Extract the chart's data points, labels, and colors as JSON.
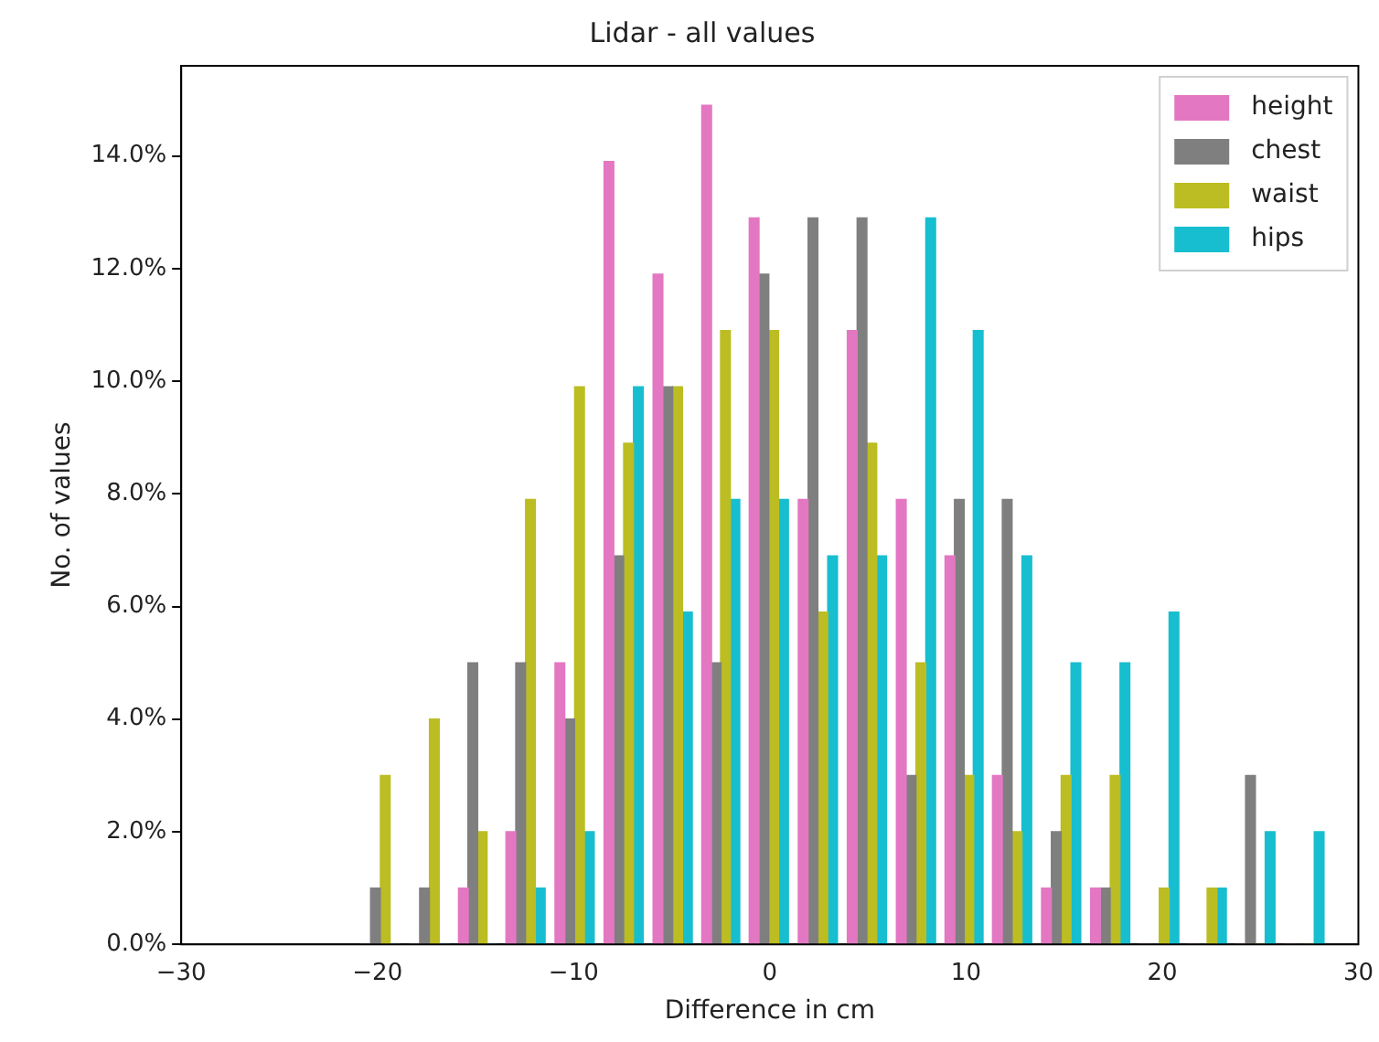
{
  "chart_data": {
    "type": "histogram",
    "title": "Lidar - all values",
    "xlabel": "Difference in cm",
    "ylabel": "No. of values",
    "bins": [
      -21.1,
      -18.6,
      -16.1,
      -13.7,
      -11.2,
      -8.7,
      -6.2,
      -3.7,
      -1.3,
      1.2,
      3.7,
      6.2,
      8.7,
      11.1,
      13.6,
      16.1,
      18.6,
      21.1,
      23.5,
      26.0,
      28.5
    ],
    "series": [
      {
        "name": "height",
        "color": "#e377c2",
        "values": [
          0,
          0,
          1.0,
          2.0,
          5.0,
          13.9,
          11.9,
          14.9,
          12.9,
          7.9,
          10.9,
          7.9,
          6.9,
          3.0,
          1.0,
          1.0,
          0,
          0,
          0,
          0
        ]
      },
      {
        "name": "chest",
        "color": "#7f7f7f",
        "values": [
          1.0,
          1.0,
          5.0,
          5.0,
          4.0,
          6.9,
          9.9,
          5.0,
          11.9,
          12.9,
          12.9,
          3.0,
          7.9,
          7.9,
          2.0,
          1.0,
          0,
          0,
          3.0,
          0
        ]
      },
      {
        "name": "waist",
        "color": "#bcbd22",
        "values": [
          3.0,
          4.0,
          2.0,
          7.9,
          9.9,
          8.9,
          9.9,
          10.9,
          10.9,
          5.9,
          8.9,
          5.0,
          3.0,
          2.0,
          3.0,
          3.0,
          1.0,
          1.0,
          0,
          0
        ]
      },
      {
        "name": "hips",
        "color": "#17becf",
        "values": [
          0,
          0,
          0,
          1.0,
          2.0,
          9.9,
          5.9,
          7.9,
          7.9,
          6.9,
          6.9,
          12.9,
          10.9,
          6.9,
          5.0,
          5.0,
          5.9,
          1.0,
          2.0,
          2.0
        ]
      }
    ],
    "xlim": [
      -30,
      30
    ],
    "xticks": [
      {
        "value": -30,
        "label": "−30"
      },
      {
        "value": -20,
        "label": "−20"
      },
      {
        "value": -10,
        "label": "−10"
      },
      0,
      10,
      20,
      30
    ],
    "ylim": [
      0,
      15.6
    ],
    "yticks": [
      {
        "value": 0,
        "label": "0.0%"
      },
      {
        "value": 2,
        "label": "2.0%"
      },
      {
        "value": 4,
        "label": "4.0%"
      },
      {
        "value": 6,
        "label": "6.0%"
      },
      {
        "value": 8,
        "label": "8.0%"
      },
      {
        "value": 10,
        "label": "10.0%"
      },
      {
        "value": 12,
        "label": "12.0%"
      },
      {
        "value": 14,
        "label": "14.0%"
      }
    ],
    "legend": "top right",
    "grid": false
  }
}
